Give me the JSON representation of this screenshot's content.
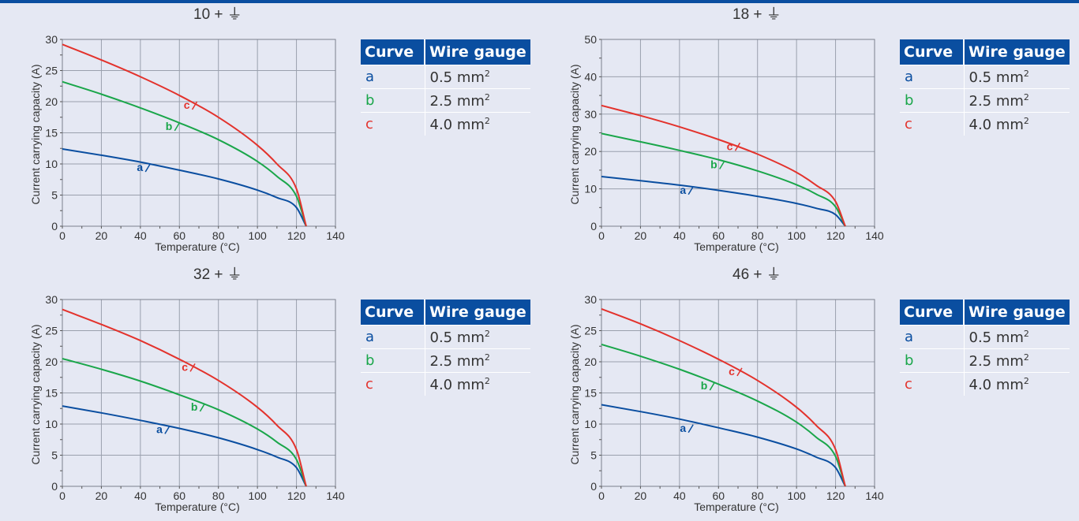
{
  "header_bar_color": "#0a4ea0",
  "series_colors": {
    "a": "#0a4ea0",
    "b": "#1aa64a",
    "c": "#e3322c"
  },
  "legend": {
    "col_curve": "Curve",
    "col_gauge": "Wire gauge",
    "rows": [
      {
        "curve": "a",
        "gauge": "0.5 mm",
        "sup": "2",
        "color": "#0a4ea0"
      },
      {
        "curve": "b",
        "gauge": "2.5 mm",
        "sup": "2",
        "color": "#1aa64a"
      },
      {
        "curve": "c",
        "gauge": "4.0 mm",
        "sup": "2",
        "color": "#e3322c"
      }
    ]
  },
  "chart_data": [
    {
      "type": "line",
      "title": "10 + ⏚",
      "xlabel": "Temperature (°C)",
      "ylabel": "Current carrying capacity (A)",
      "xlim": [
        0,
        140
      ],
      "ylim": [
        0,
        30
      ],
      "xticks": [
        0,
        20,
        40,
        60,
        80,
        100,
        120,
        140
      ],
      "yticks": [
        0,
        5,
        10,
        15,
        20,
        25,
        30
      ],
      "grid": true,
      "series": [
        {
          "name": "a",
          "x": [
            0,
            20,
            40,
            60,
            80,
            100,
            110,
            120,
            125
          ],
          "y": [
            12.4,
            11.4,
            10.3,
            9.0,
            7.6,
            5.8,
            4.6,
            3.0,
            0
          ]
        },
        {
          "name": "b",
          "x": [
            0,
            20,
            40,
            60,
            80,
            100,
            110,
            120,
            125
          ],
          "y": [
            23.2,
            21.2,
            19.0,
            16.6,
            13.9,
            10.4,
            8.0,
            4.8,
            0
          ]
        },
        {
          "name": "c",
          "x": [
            0,
            20,
            40,
            60,
            80,
            100,
            110,
            120,
            125
          ],
          "y": [
            29.2,
            26.7,
            24.0,
            21.0,
            17.5,
            13.0,
            10.0,
            6.0,
            0
          ]
        }
      ],
      "labels": [
        {
          "text": "a",
          "x": 45,
          "y": 10.0
        },
        {
          "text": "b",
          "x": 60,
          "y": 16.6
        },
        {
          "text": "c",
          "x": 69,
          "y": 20.0
        }
      ]
    },
    {
      "type": "line",
      "title": "18 + ⏚",
      "xlabel": "Temperature (°C)",
      "ylabel": "Current carrying capacity (A)",
      "xlim": [
        0,
        140
      ],
      "ylim": [
        0,
        50
      ],
      "xticks": [
        0,
        20,
        40,
        60,
        80,
        100,
        120,
        140
      ],
      "yticks": [
        0,
        10,
        20,
        30,
        40,
        50
      ],
      "grid": true,
      "series": [
        {
          "name": "a",
          "x": [
            0,
            20,
            40,
            60,
            80,
            100,
            110,
            120,
            125
          ],
          "y": [
            13.3,
            12.2,
            11.0,
            9.6,
            8.0,
            6.1,
            4.8,
            3.1,
            0
          ]
        },
        {
          "name": "b",
          "x": [
            0,
            20,
            40,
            60,
            80,
            100,
            110,
            120,
            125
          ],
          "y": [
            24.8,
            22.6,
            20.3,
            17.8,
            14.8,
            11.1,
            8.6,
            5.2,
            0
          ]
        },
        {
          "name": "c",
          "x": [
            0,
            20,
            40,
            60,
            80,
            100,
            110,
            120,
            125
          ],
          "y": [
            32.3,
            29.6,
            26.6,
            23.2,
            19.3,
            14.4,
            11.0,
            6.6,
            0
          ]
        }
      ],
      "labels": [
        {
          "text": "a",
          "x": 47,
          "y": 10.6
        },
        {
          "text": "b",
          "x": 63,
          "y": 17.4
        },
        {
          "text": "c",
          "x": 71,
          "y": 22.3
        }
      ]
    },
    {
      "type": "line",
      "title": "32 + ⏚",
      "xlabel": "Temperature (°C)",
      "ylabel": "Current carrying capacity (A)",
      "xlim": [
        0,
        140
      ],
      "ylim": [
        0,
        30
      ],
      "xticks": [
        0,
        20,
        40,
        60,
        80,
        100,
        120,
        140
      ],
      "yticks": [
        0,
        5,
        10,
        15,
        20,
        25,
        30
      ],
      "grid": true,
      "series": [
        {
          "name": "a",
          "x": [
            0,
            20,
            40,
            60,
            80,
            100,
            110,
            120,
            125
          ],
          "y": [
            12.9,
            11.8,
            10.6,
            9.3,
            7.8,
            5.9,
            4.7,
            3.0,
            0
          ]
        },
        {
          "name": "b",
          "x": [
            0,
            20,
            40,
            60,
            80,
            100,
            110,
            120,
            125
          ],
          "y": [
            20.5,
            18.8,
            16.9,
            14.7,
            12.3,
            9.2,
            7.1,
            4.3,
            0
          ]
        },
        {
          "name": "c",
          "x": [
            0,
            20,
            40,
            60,
            80,
            100,
            110,
            120,
            125
          ],
          "y": [
            28.4,
            26.0,
            23.4,
            20.4,
            17.0,
            12.7,
            9.8,
            5.9,
            0
          ]
        }
      ],
      "labels": [
        {
          "text": "a",
          "x": 55,
          "y": 9.7
        },
        {
          "text": "b",
          "x": 73,
          "y": 13.3
        },
        {
          "text": "c",
          "x": 68,
          "y": 19.7
        }
      ]
    },
    {
      "type": "line",
      "title": "46 + ⏚",
      "xlabel": "Temperature (°C)",
      "ylabel": "Current carrying capacity (A)",
      "xlim": [
        0,
        140
      ],
      "ylim": [
        0,
        30
      ],
      "xticks": [
        0,
        20,
        40,
        60,
        80,
        100,
        120,
        140
      ],
      "yticks": [
        0,
        5,
        10,
        15,
        20,
        25,
        30
      ],
      "grid": true,
      "series": [
        {
          "name": "a",
          "x": [
            0,
            20,
            40,
            60,
            80,
            100,
            110,
            120,
            125
          ],
          "y": [
            13.1,
            12.0,
            10.8,
            9.4,
            7.9,
            6.0,
            4.7,
            3.0,
            0
          ]
        },
        {
          "name": "b",
          "x": [
            0,
            20,
            40,
            60,
            80,
            100,
            110,
            120,
            125
          ],
          "y": [
            22.8,
            20.9,
            18.8,
            16.4,
            13.7,
            10.3,
            7.9,
            4.8,
            0
          ]
        },
        {
          "name": "c",
          "x": [
            0,
            20,
            40,
            60,
            80,
            100,
            110,
            120,
            125
          ],
          "y": [
            28.5,
            26.1,
            23.4,
            20.4,
            17.0,
            12.7,
            9.8,
            5.9,
            0
          ]
        }
      ],
      "labels": [
        {
          "text": "a",
          "x": 47,
          "y": 9.9
        },
        {
          "text": "b",
          "x": 58,
          "y": 16.7
        },
        {
          "text": "c",
          "x": 72,
          "y": 19.0
        }
      ]
    }
  ]
}
